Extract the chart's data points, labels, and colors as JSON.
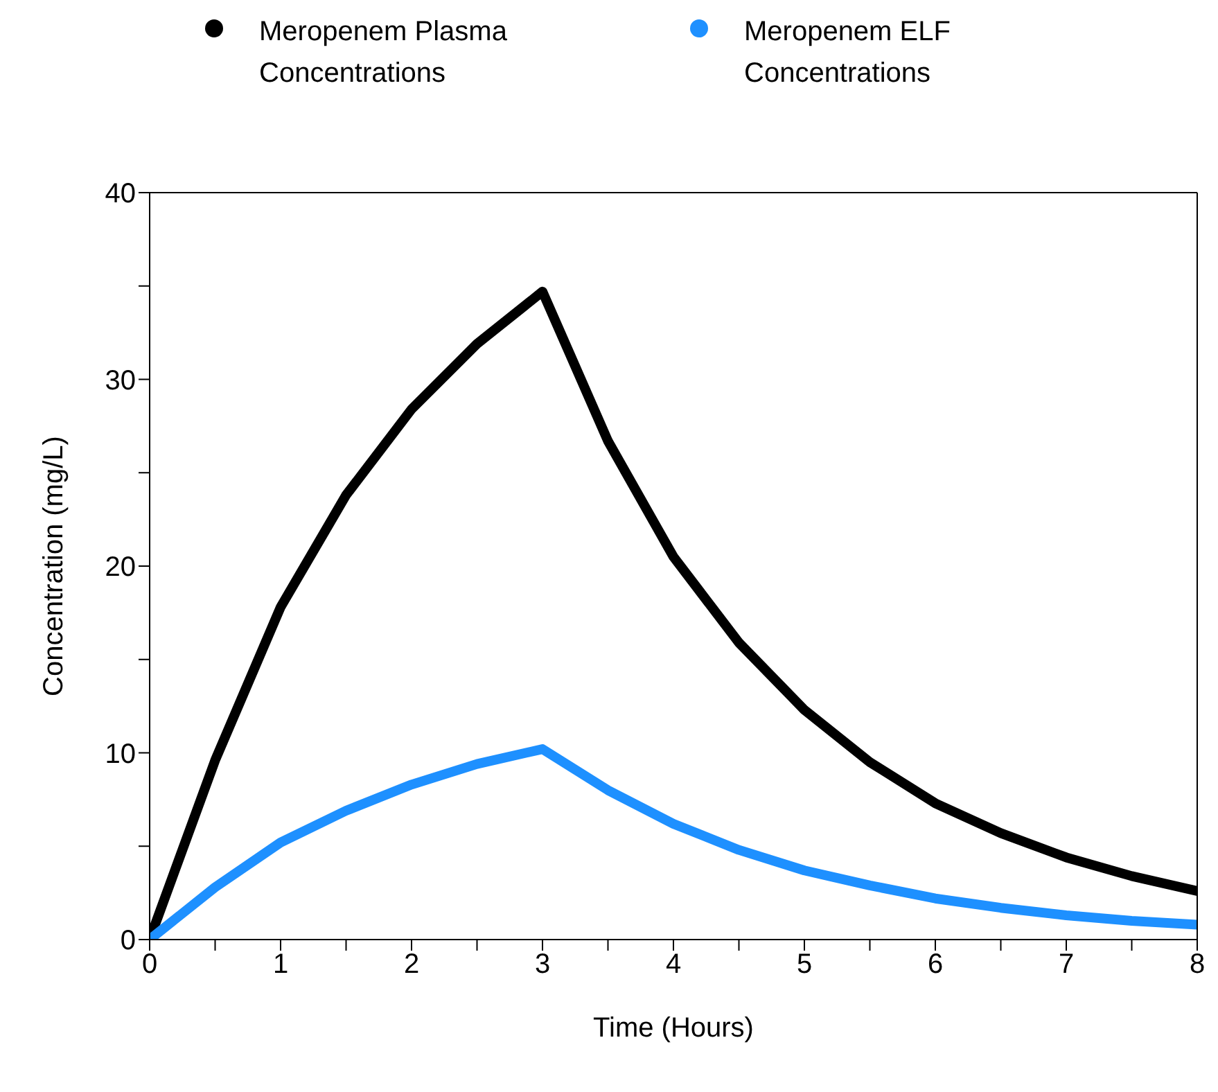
{
  "chart_data": {
    "type": "line",
    "xlabel": "Time (Hours)",
    "ylabel": "Concentration (mg/L)",
    "x": [
      0,
      0.5,
      1,
      1.5,
      2,
      2.5,
      3,
      3.5,
      4,
      4.5,
      5,
      5.5,
      6,
      6.5,
      7,
      7.5,
      8
    ],
    "series": [
      {
        "name": "Meropenem  Plasma Concentrations",
        "color": "#000000",
        "values": [
          0,
          9.6,
          17.8,
          23.8,
          28.4,
          31.9,
          34.7,
          26.7,
          20.5,
          15.9,
          12.3,
          9.5,
          7.3,
          5.7,
          4.4,
          3.4,
          2.6
        ]
      },
      {
        "name": "Meropenem  ELF Concentrations",
        "color": "#1e90ff",
        "values": [
          0,
          2.8,
          5.2,
          6.9,
          8.3,
          9.4,
          10.2,
          8.0,
          6.2,
          4.8,
          3.7,
          2.9,
          2.2,
          1.7,
          1.3,
          1.0,
          0.8
        ]
      }
    ],
    "xlim": [
      0,
      8
    ],
    "xticks": [
      0,
      {
        "value": 0.5,
        "label": null
      },
      1,
      {
        "value": 1.5,
        "label": null
      },
      2,
      {
        "value": 2.5,
        "label": null
      },
      3,
      {
        "value": 3.5,
        "label": null
      },
      4,
      {
        "value": 4.5,
        "label": null
      },
      5,
      {
        "value": 5.5,
        "label": null
      },
      6,
      {
        "value": 6.5,
        "label": null
      },
      7,
      {
        "value": 7.5,
        "label": null
      },
      8
    ],
    "ylim": [
      0,
      40
    ],
    "yticks": [
      0,
      {
        "value": 5,
        "label": null
      },
      10,
      {
        "value": 15,
        "label": null
      },
      20,
      {
        "value": 25,
        "label": null
      },
      30,
      {
        "value": 35,
        "label": null
      },
      40
    ],
    "legend": "top",
    "marker": "none",
    "line_style": "solid",
    "grid": false
  }
}
